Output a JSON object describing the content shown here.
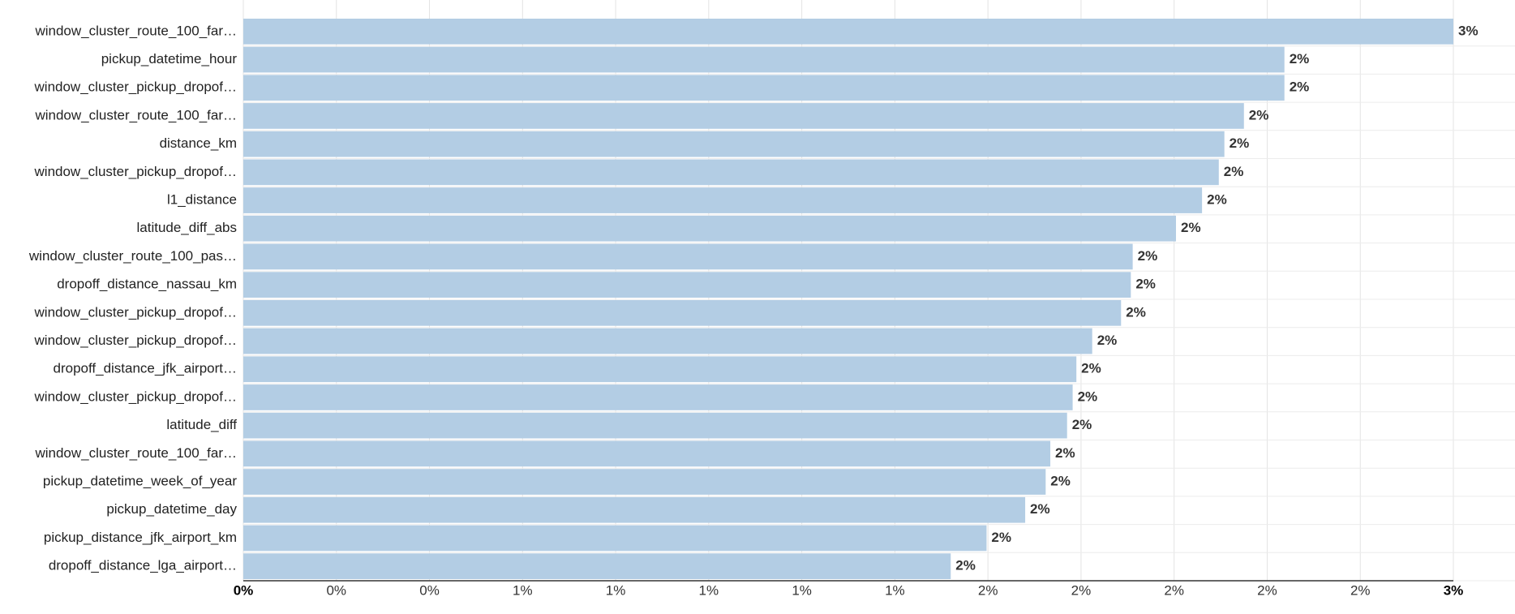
{
  "chart_data": {
    "type": "barh",
    "categories": [
      "window_cluster_route_100_far…",
      "pickup_datetime_hour",
      "window_cluster_pickup_dropof…",
      "window_cluster_route_100_far…",
      "distance_km",
      "window_cluster_pickup_dropof…",
      "l1_distance",
      "latitude_diff_abs",
      "window_cluster_route_100_pas…",
      "dropoff_distance_nassau_km",
      "window_cluster_pickup_dropof…",
      "window_cluster_pickup_dropof…",
      "dropoff_distance_jfk_airport…",
      "window_cluster_pickup_dropof…",
      "latitude_diff",
      "window_cluster_route_100_far…",
      "pickup_datetime_week_of_year",
      "pickup_datetime_day",
      "pickup_distance_jfk_airport_km",
      "dropoff_distance_lga_airport…"
    ],
    "values": [
      2.6,
      2.237,
      2.237,
      2.15,
      2.108,
      2.096,
      2.06,
      2.004,
      1.911,
      1.907,
      1.886,
      1.824,
      1.79,
      1.782,
      1.77,
      1.734,
      1.724,
      1.68,
      1.597,
      1.52
    ],
    "value_labels": [
      "3%",
      "2%",
      "2%",
      "2%",
      "2%",
      "2%",
      "2%",
      "2%",
      "2%",
      "2%",
      "2%",
      "2%",
      "2%",
      "2%",
      "2%",
      "2%",
      "2%",
      "2%",
      "2%",
      "2%"
    ],
    "color": "#b3cde4",
    "xlim": [
      0,
      2.6
    ],
    "xticks": [
      {
        "value": 0,
        "label": "0%"
      },
      {
        "value": 0.2,
        "label": "0%"
      },
      {
        "value": 0.4,
        "label": "0%"
      },
      {
        "value": 0.6,
        "label": "1%"
      },
      {
        "value": 0.8,
        "label": "1%"
      },
      {
        "value": 1.0,
        "label": "1%"
      },
      {
        "value": 1.2,
        "label": "1%"
      },
      {
        "value": 1.4,
        "label": "1%"
      },
      {
        "value": 1.6,
        "label": "2%"
      },
      {
        "value": 1.8,
        "label": "2%"
      },
      {
        "value": 2.0,
        "label": "2%"
      },
      {
        "value": 2.2,
        "label": "2%"
      },
      {
        "value": 2.4,
        "label": "2%"
      },
      {
        "value": 2.6,
        "label": "3%"
      }
    ],
    "grid": true
  }
}
